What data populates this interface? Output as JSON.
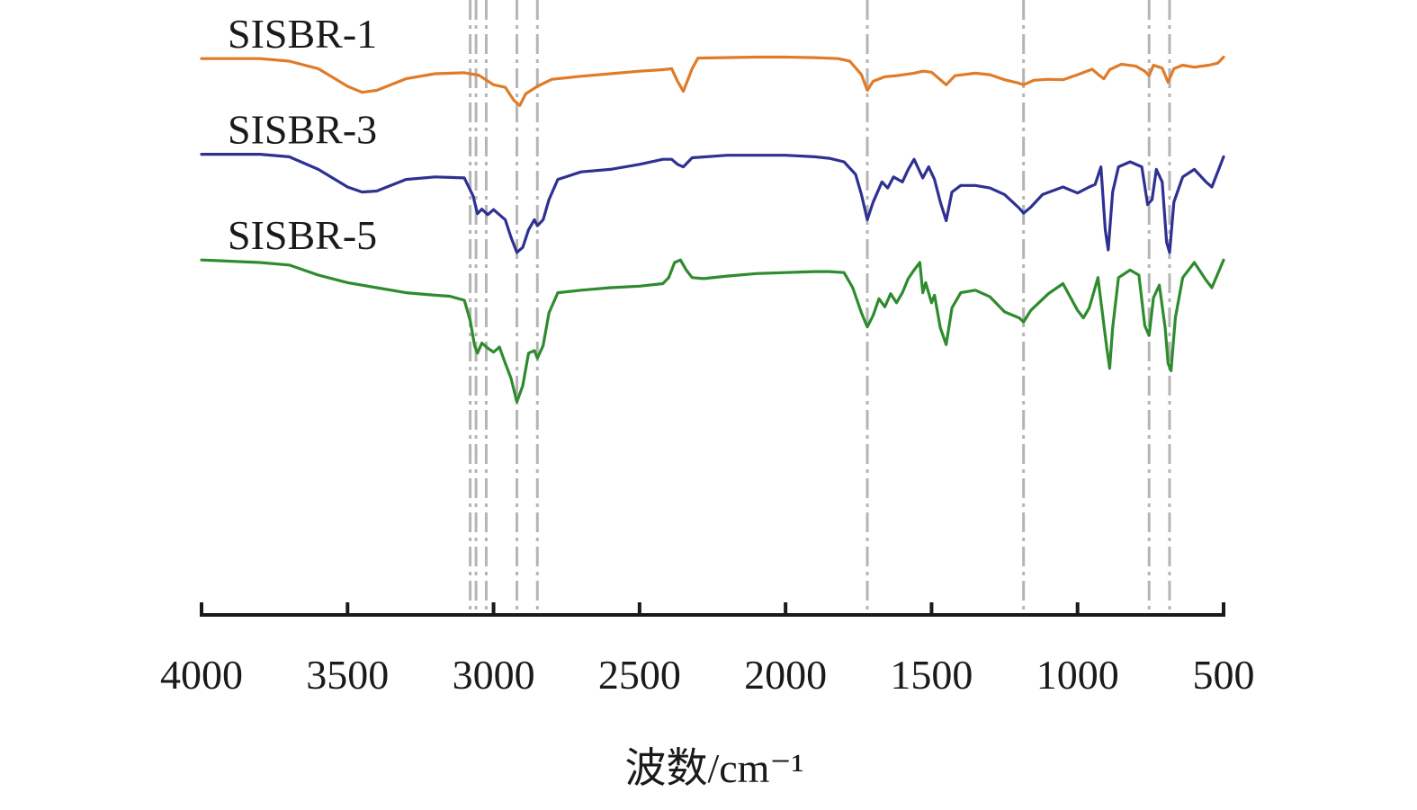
{
  "chart_data": {
    "type": "line",
    "title": "",
    "xlabel": "波数/cm⁻¹",
    "ylabel": "",
    "x_axis": {
      "min": 4000,
      "max": 500,
      "reversed": true,
      "ticks": [
        {
          "value": 4000,
          "label": "4000"
        },
        {
          "value": 3500,
          "label": "3500"
        },
        {
          "value": 3000,
          "label": "3000"
        },
        {
          "value": 2500,
          "label": "2500"
        },
        {
          "value": 2000,
          "label": "2000"
        },
        {
          "value": 1500,
          "label": "1500"
        },
        {
          "value": 1000,
          "label": "1000"
        },
        {
          "value": 500,
          "label": "500"
        }
      ]
    },
    "y_axis": {
      "shown": false,
      "min": 0,
      "max": 100
    },
    "grid": false,
    "legend": "inline labels above each trace",
    "reference_lines_x": [
      3080,
      3060,
      3025,
      2920,
      2850,
      1720,
      1185,
      755,
      685
    ],
    "series": [
      {
        "name": "SISBR-1",
        "color": "#E07B28",
        "points": [
          [
            4000,
            95.5
          ],
          [
            3800,
            95.5
          ],
          [
            3700,
            95
          ],
          [
            3600,
            93.5
          ],
          [
            3500,
            90
          ],
          [
            3450,
            88.8
          ],
          [
            3400,
            89.2
          ],
          [
            3300,
            91.5
          ],
          [
            3200,
            92.5
          ],
          [
            3100,
            92.7
          ],
          [
            3050,
            92.2
          ],
          [
            3000,
            90.3
          ],
          [
            2960,
            89.8
          ],
          [
            2930,
            87.2
          ],
          [
            2910,
            86.2
          ],
          [
            2890,
            88.5
          ],
          [
            2850,
            90
          ],
          [
            2800,
            91.4
          ],
          [
            2700,
            92
          ],
          [
            2600,
            92.5
          ],
          [
            2500,
            93
          ],
          [
            2420,
            93.3
          ],
          [
            2390,
            93.5
          ],
          [
            2370,
            91
          ],
          [
            2350,
            89
          ],
          [
            2320,
            93.5
          ],
          [
            2300,
            95.6
          ],
          [
            2100,
            95.8
          ],
          [
            2000,
            95.8
          ],
          [
            1900,
            95.7
          ],
          [
            1820,
            95.5
          ],
          [
            1780,
            95
          ],
          [
            1740,
            92.3
          ],
          [
            1720,
            89.2
          ],
          [
            1700,
            91
          ],
          [
            1660,
            91.9
          ],
          [
            1620,
            92.1
          ],
          [
            1560,
            92.6
          ],
          [
            1530,
            93
          ],
          [
            1500,
            92.8
          ],
          [
            1470,
            91.3
          ],
          [
            1450,
            90.3
          ],
          [
            1420,
            92.1
          ],
          [
            1350,
            92.6
          ],
          [
            1300,
            92.3
          ],
          [
            1250,
            91.3
          ],
          [
            1200,
            90.6
          ],
          [
            1185,
            90.3
          ],
          [
            1150,
            91.2
          ],
          [
            1100,
            91.4
          ],
          [
            1050,
            91.3
          ],
          [
            1000,
            92.3
          ],
          [
            950,
            93.4
          ],
          [
            930,
            92.4
          ],
          [
            910,
            91.5
          ],
          [
            890,
            93.3
          ],
          [
            850,
            94.4
          ],
          [
            800,
            94
          ],
          [
            770,
            93
          ],
          [
            755,
            92.1
          ],
          [
            740,
            94.2
          ],
          [
            710,
            93.6
          ],
          [
            690,
            90.8
          ],
          [
            670,
            93.5
          ],
          [
            640,
            94.2
          ],
          [
            600,
            93.8
          ],
          [
            550,
            94.2
          ],
          [
            520,
            94.6
          ],
          [
            500,
            95.8
          ]
        ]
      },
      {
        "name": "SISBR-3",
        "color": "#2E3192",
        "points": [
          [
            4000,
            76.5
          ],
          [
            3800,
            76.5
          ],
          [
            3700,
            76
          ],
          [
            3600,
            73.5
          ],
          [
            3500,
            70
          ],
          [
            3450,
            69
          ],
          [
            3400,
            69.2
          ],
          [
            3300,
            71.5
          ],
          [
            3200,
            72
          ],
          [
            3100,
            71.8
          ],
          [
            3070,
            68.2
          ],
          [
            3055,
            64.7
          ],
          [
            3040,
            65.6
          ],
          [
            3020,
            64.5
          ],
          [
            3000,
            65.5
          ],
          [
            2960,
            63.5
          ],
          [
            2940,
            60
          ],
          [
            2920,
            57
          ],
          [
            2900,
            58
          ],
          [
            2880,
            61.5
          ],
          [
            2860,
            63.5
          ],
          [
            2850,
            62.3
          ],
          [
            2830,
            63.5
          ],
          [
            2810,
            67.5
          ],
          [
            2780,
            71.5
          ],
          [
            2700,
            73
          ],
          [
            2600,
            73.5
          ],
          [
            2500,
            74.5
          ],
          [
            2420,
            75.5
          ],
          [
            2390,
            75.5
          ],
          [
            2370,
            74.5
          ],
          [
            2350,
            74
          ],
          [
            2320,
            75.8
          ],
          [
            2200,
            76.3
          ],
          [
            2000,
            76.3
          ],
          [
            1900,
            76
          ],
          [
            1850,
            75.7
          ],
          [
            1800,
            75
          ],
          [
            1760,
            72.5
          ],
          [
            1740,
            68.5
          ],
          [
            1720,
            63.5
          ],
          [
            1700,
            67
          ],
          [
            1670,
            71
          ],
          [
            1650,
            69.8
          ],
          [
            1630,
            72
          ],
          [
            1600,
            71
          ],
          [
            1580,
            73.5
          ],
          [
            1560,
            75.5
          ],
          [
            1530,
            71.8
          ],
          [
            1510,
            74
          ],
          [
            1490,
            71.5
          ],
          [
            1470,
            67
          ],
          [
            1450,
            63.3
          ],
          [
            1430,
            69
          ],
          [
            1400,
            70.3
          ],
          [
            1350,
            70.3
          ],
          [
            1300,
            69.8
          ],
          [
            1250,
            68.5
          ],
          [
            1200,
            65.8
          ],
          [
            1185,
            64.8
          ],
          [
            1160,
            66
          ],
          [
            1120,
            68.5
          ],
          [
            1050,
            70
          ],
          [
            1000,
            68.8
          ],
          [
            960,
            70
          ],
          [
            940,
            70.5
          ],
          [
            920,
            74
          ],
          [
            905,
            61.5
          ],
          [
            895,
            57.5
          ],
          [
            880,
            69
          ],
          [
            860,
            74
          ],
          [
            820,
            75
          ],
          [
            780,
            74
          ],
          [
            760,
            66.5
          ],
          [
            745,
            67.5
          ],
          [
            730,
            73.5
          ],
          [
            710,
            71
          ],
          [
            695,
            59
          ],
          [
            685,
            57
          ],
          [
            670,
            67
          ],
          [
            640,
            72
          ],
          [
            600,
            73.5
          ],
          [
            560,
            71
          ],
          [
            540,
            70
          ],
          [
            500,
            76
          ]
        ]
      },
      {
        "name": "SISBR-5",
        "color": "#2E8B2E",
        "points": [
          [
            4000,
            55.5
          ],
          [
            3800,
            55
          ],
          [
            3700,
            54.5
          ],
          [
            3600,
            52.5
          ],
          [
            3500,
            51
          ],
          [
            3400,
            50
          ],
          [
            3300,
            49
          ],
          [
            3200,
            48.5
          ],
          [
            3150,
            48.3
          ],
          [
            3100,
            47.5
          ],
          [
            3080,
            43.5
          ],
          [
            3065,
            38.5
          ],
          [
            3055,
            37
          ],
          [
            3040,
            39
          ],
          [
            3020,
            38
          ],
          [
            3000,
            37.2
          ],
          [
            2980,
            38.2
          ],
          [
            2960,
            35
          ],
          [
            2940,
            32
          ],
          [
            2920,
            27.3
          ],
          [
            2900,
            30.5
          ],
          [
            2880,
            37
          ],
          [
            2860,
            37.5
          ],
          [
            2850,
            36
          ],
          [
            2830,
            38.5
          ],
          [
            2810,
            45
          ],
          [
            2780,
            49
          ],
          [
            2700,
            49.5
          ],
          [
            2600,
            50
          ],
          [
            2500,
            50.3
          ],
          [
            2420,
            50.8
          ],
          [
            2400,
            52
          ],
          [
            2380,
            55
          ],
          [
            2360,
            55.5
          ],
          [
            2340,
            53.5
          ],
          [
            2320,
            52
          ],
          [
            2280,
            51.8
          ],
          [
            2200,
            52.3
          ],
          [
            2100,
            52.8
          ],
          [
            2000,
            53
          ],
          [
            1900,
            53.2
          ],
          [
            1850,
            53.2
          ],
          [
            1800,
            53
          ],
          [
            1770,
            50
          ],
          [
            1740,
            45
          ],
          [
            1720,
            42.2
          ],
          [
            1700,
            44.5
          ],
          [
            1680,
            47.8
          ],
          [
            1660,
            46.2
          ],
          [
            1640,
            48.8
          ],
          [
            1620,
            47
          ],
          [
            1600,
            49
          ],
          [
            1580,
            51.8
          ],
          [
            1560,
            53.5
          ],
          [
            1540,
            55
          ],
          [
            1530,
            49
          ],
          [
            1520,
            51
          ],
          [
            1500,
            47
          ],
          [
            1490,
            48.5
          ],
          [
            1470,
            42
          ],
          [
            1450,
            38.7
          ],
          [
            1430,
            46
          ],
          [
            1400,
            49
          ],
          [
            1350,
            49.5
          ],
          [
            1300,
            48.2
          ],
          [
            1250,
            45.2
          ],
          [
            1200,
            44
          ],
          [
            1185,
            43.2
          ],
          [
            1160,
            45.5
          ],
          [
            1100,
            48.8
          ],
          [
            1050,
            50.8
          ],
          [
            1000,
            45.5
          ],
          [
            980,
            44
          ],
          [
            960,
            46
          ],
          [
            930,
            52
          ],
          [
            915,
            45
          ],
          [
            900,
            38
          ],
          [
            890,
            34
          ],
          [
            880,
            42
          ],
          [
            860,
            52
          ],
          [
            820,
            53.5
          ],
          [
            790,
            52.5
          ],
          [
            770,
            42.5
          ],
          [
            755,
            40.5
          ],
          [
            740,
            48
          ],
          [
            720,
            50.5
          ],
          [
            700,
            42
          ],
          [
            690,
            35
          ],
          [
            680,
            33.5
          ],
          [
            665,
            44
          ],
          [
            640,
            52
          ],
          [
            600,
            55
          ],
          [
            560,
            51.5
          ],
          [
            540,
            50
          ],
          [
            500,
            55.5
          ]
        ]
      }
    ]
  }
}
